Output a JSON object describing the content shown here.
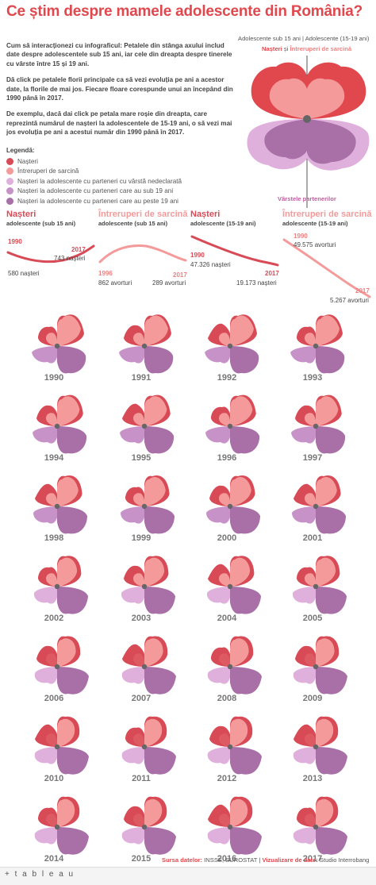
{
  "title": "Ce știm despre mamele adolescente din România?",
  "intro": [
    "Cum să interacționezi cu infograficul: Petalele din stânga axului includ date despre adolescentele sub 15 ani, iar cele din dreapta despre tinerele cu vârste între 15 și 19 ani.",
    "Dă click pe petalele florii principale ca să vezi evoluția pe ani a acestor date, la florile de mai jos. Fiecare floare corespunde unui an începând din 1990 până în 2017.",
    "De exemplu, dacă dai click pe petala mare roșie din dreapta, care reprezintă numărul de nașteri la adolescentele de 15-19 ani, o să vezi mai jos evoluția pe ani a acestui număr din 1990 până în 2017."
  ],
  "legend": {
    "title": "Legendă:",
    "items": [
      {
        "label": "Nașteri",
        "color": "#d84a55"
      },
      {
        "label": "Întreruperi de sarcină",
        "color": "#f59a9a"
      },
      {
        "label": "Nașteri la adolescente cu parteneri cu vârstă nedeclarată",
        "color": "#e0b0dc"
      },
      {
        "label": "Nașteri la adolescente cu parteneri care au sub 19 ani",
        "color": "#c792c8"
      },
      {
        "label": "Nașteri la adolescente cu parteneri care au peste 19 ani",
        "color": "#a970a8"
      }
    ]
  },
  "main_flower": {
    "header": "Adolescente sub 15 ani | Adolescente (15-19 ani)",
    "sub_red": "Nașteri",
    "sub_mid": " și ",
    "sub_pink": "Întreruperi de sarcină",
    "partners": "Vârstele partenerilor"
  },
  "mini_charts": [
    {
      "title": "Nașteri",
      "subtitle": "adolescente (sub 15 ani)",
      "color": "#d84a55",
      "start_year": "1990",
      "start_value": "580 nașteri",
      "end_year": "2017",
      "end_value": "743 nașteri"
    },
    {
      "title": "Întreruperi de sarcină",
      "subtitle": "adolescente (sub 15 ani)",
      "color": "#f59a9a",
      "start_year": "1996",
      "start_value": "862 avorturi",
      "end_year": "2017",
      "end_value": "289 avorturi"
    },
    {
      "title": "Nașteri",
      "subtitle": "adolescente (15-19 ani)",
      "color": "#d84a55",
      "start_year": "1990",
      "start_value": "47.326 nașteri",
      "end_year": "2017",
      "end_value": "19.173 nașteri"
    },
    {
      "title": "Întreruperi de sarcină",
      "subtitle": "adolescente (15-19 ani)",
      "color": "#f59a9a",
      "start_year": "1990",
      "start_value": "49.575 avorturi",
      "end_year": "2017",
      "end_value": "5.267 avorturi"
    }
  ],
  "years": [
    "1990",
    "1991",
    "1992",
    "1993",
    "1994",
    "1995",
    "1996",
    "1997",
    "1998",
    "1999",
    "2000",
    "2001",
    "2002",
    "2003",
    "2004",
    "2005",
    "2006",
    "2007",
    "2008",
    "2009",
    "2010",
    "2011",
    "2012",
    "2013",
    "2014",
    "2015",
    "2016",
    "2017"
  ],
  "footer": {
    "source_label": "Sursa datelor:",
    "source": " INSSE, EUROSTAT | ",
    "viz_label": "Vizualizare de date:",
    "viz": " Studio Interrobang"
  },
  "tableau": "+ t a b l e a u"
}
